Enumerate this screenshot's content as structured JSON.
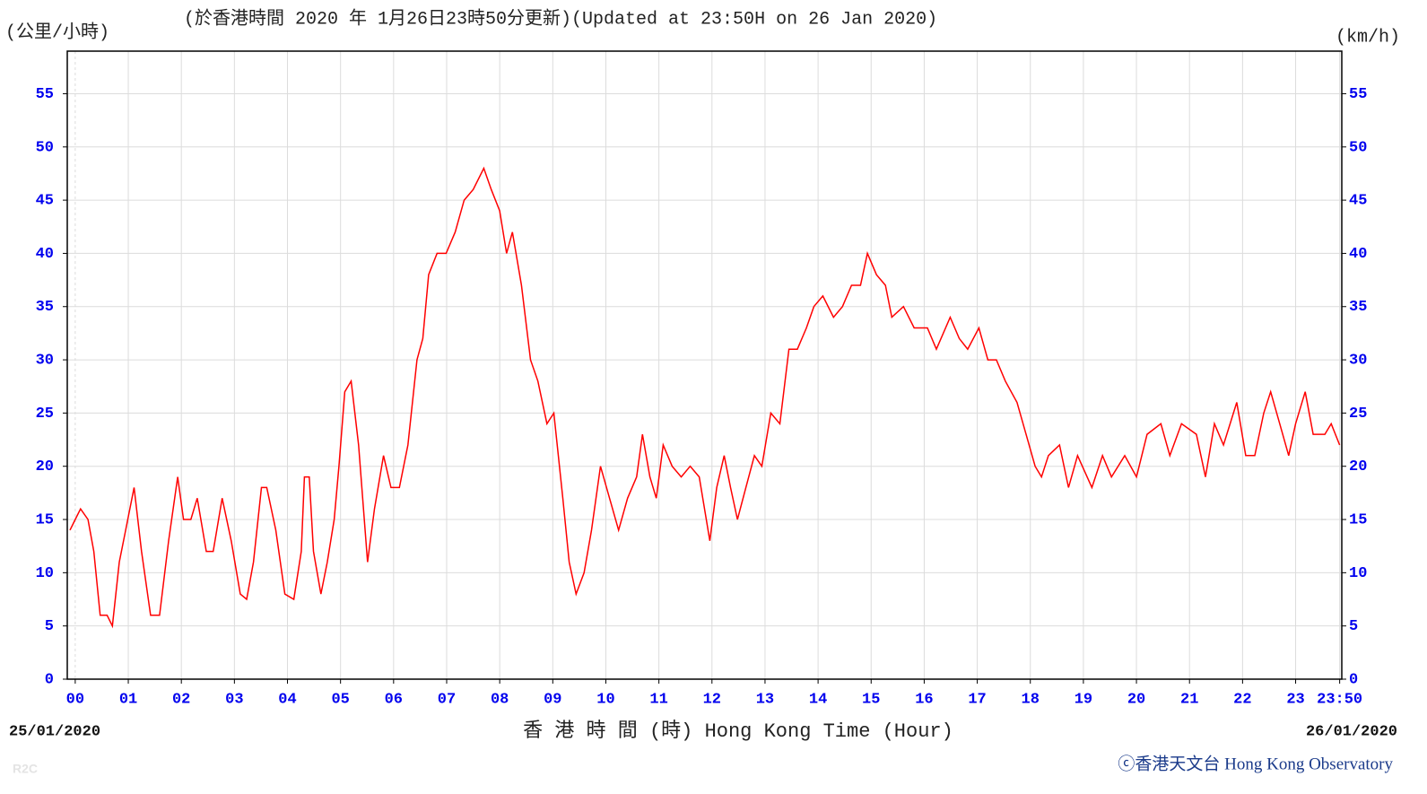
{
  "chart_data": {
    "type": "line",
    "unit_left": "(公里/小時)",
    "title": "(於香港時間 2020 年 1月26日23時50分更新)(Updated at 23:50H on 26 Jan 2020)",
    "unit_right": "(km/h)",
    "start_date": "25/01/2020",
    "end_date": "26/01/2020",
    "x_label": "香 港 時 間 (時) Hong Kong Time (Hour)",
    "source_code": "R2C",
    "credit": "ⓒ香港天文台 Hong Kong Observatory",
    "grid": true,
    "xlim": [
      -0.15,
      23.87
    ],
    "xticks": [
      {
        "value": 0,
        "label": "00"
      },
      {
        "value": 1,
        "label": "01"
      },
      {
        "value": 2,
        "label": "02"
      },
      {
        "value": 3,
        "label": "03"
      },
      {
        "value": 4,
        "label": "04"
      },
      {
        "value": 5,
        "label": "05"
      },
      {
        "value": 6,
        "label": "06"
      },
      {
        "value": 7,
        "label": "07"
      },
      {
        "value": 8,
        "label": "08"
      },
      {
        "value": 9,
        "label": "09"
      },
      10,
      11,
      12,
      13,
      14,
      15,
      16,
      17,
      18,
      19,
      20,
      21,
      22,
      23,
      {
        "value": 23.83,
        "label": "23:50"
      }
    ],
    "ylim": [
      0,
      59
    ],
    "yticks": [
      0,
      5,
      10,
      15,
      20,
      25,
      30,
      35,
      40,
      45,
      50,
      55
    ],
    "y2lim": [
      0,
      59
    ],
    "y2ticks": [
      0,
      5,
      10,
      15,
      20,
      25,
      30,
      35,
      40,
      45,
      50,
      55
    ],
    "series": [
      {
        "color": "#ff0000",
        "x": [
          -0.1,
          0,
          0.1,
          0.24,
          0.35,
          0.47,
          0.6,
          0.7,
          0.83,
          0.95,
          1.11,
          1.25,
          1.42,
          1.59,
          1.76,
          1.93,
          2.04,
          2.18,
          2.3,
          2.47,
          2.6,
          2.77,
          2.94,
          3.11,
          3.23,
          3.36,
          3.51,
          3.61,
          3.78,
          3.95,
          4.12,
          4.26,
          4.32,
          4.41,
          4.49,
          4.63,
          4.75,
          4.88,
          4.97,
          5.08,
          5.2,
          5.34,
          5.51,
          5.64,
          5.81,
          5.95,
          6.11,
          6.27,
          6.44,
          6.55,
          6.66,
          6.82,
          6.99,
          7.16,
          7.33,
          7.5,
          7.7,
          7.84,
          8.0,
          8.13,
          8.24,
          8.41,
          8.58,
          8.72,
          8.89,
          9.02,
          9.19,
          9.31,
          9.44,
          9.59,
          9.73,
          9.9,
          10.07,
          10.24,
          10.41,
          10.58,
          10.69,
          10.83,
          10.95,
          11.08,
          11.25,
          11.42,
          11.59,
          11.76,
          11.96,
          12.09,
          12.23,
          12.35,
          12.48,
          12.64,
          12.8,
          12.94,
          13.11,
          13.28,
          13.45,
          13.61,
          13.78,
          13.92,
          14.09,
          14.29,
          14.46,
          14.63,
          14.8,
          14.93,
          15.1,
          15.27,
          15.39,
          15.61,
          15.81,
          16.06,
          16.23,
          16.49,
          16.66,
          16.82,
          17.03,
          17.2,
          17.36,
          17.53,
          17.75,
          17.92,
          18.09,
          18.21,
          18.34,
          18.55,
          18.72,
          18.89,
          19.16,
          19.36,
          19.53,
          19.78,
          20.0,
          20.2,
          20.46,
          20.63,
          20.85,
          21.13,
          21.3,
          21.47,
          21.64,
          21.89,
          22.06,
          22.23,
          22.4,
          22.53,
          22.7,
          22.87,
          23.0,
          23.18,
          23.33,
          23.55,
          23.67,
          23.83
        ],
        "values": [
          14,
          15,
          16,
          15,
          12,
          6,
          6,
          5,
          11,
          14,
          18,
          12,
          6,
          6,
          13,
          19,
          15,
          15,
          17,
          12,
          12,
          17,
          13,
          8,
          7.5,
          11,
          18,
          18,
          14,
          8,
          7.5,
          12,
          19,
          19,
          12,
          8,
          11,
          15,
          20,
          27,
          28,
          22,
          11,
          16,
          21,
          18,
          18,
          22,
          30,
          32,
          38,
          40,
          40,
          42,
          45,
          46,
          48,
          46,
          44,
          40,
          42,
          37,
          30,
          28,
          24,
          25,
          17,
          11,
          8,
          10,
          14,
          20,
          17,
          14,
          17,
          19,
          23,
          19,
          17,
          22,
          20,
          19,
          20,
          19,
          13,
          18,
          21,
          18,
          15,
          18,
          21,
          20,
          25,
          24,
          31,
          31,
          33,
          35,
          36,
          34,
          35,
          37,
          37,
          40,
          38,
          37,
          34,
          35,
          33,
          33,
          31,
          34,
          32,
          31,
          33,
          30,
          30,
          28,
          26,
          23,
          20,
          19,
          21,
          22,
          18,
          21,
          18,
          21,
          19,
          21,
          19,
          23,
          24,
          21,
          24,
          23,
          19,
          24,
          22,
          26,
          21,
          21,
          25,
          27,
          24,
          21,
          24,
          27,
          23,
          23,
          24,
          22
        ]
      }
    ]
  }
}
